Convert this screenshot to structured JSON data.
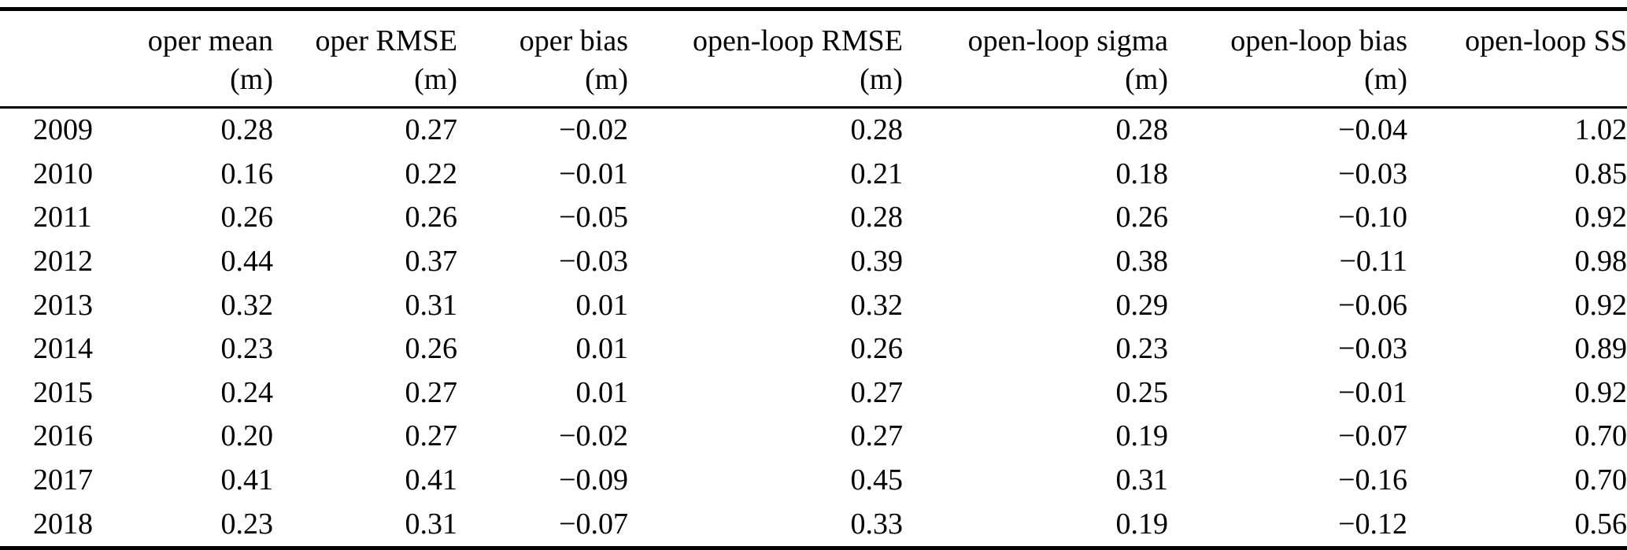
{
  "table": {
    "columns": [
      {
        "label": "",
        "unit": ""
      },
      {
        "label": "oper mean",
        "unit": "(m)"
      },
      {
        "label": "oper RMSE",
        "unit": "(m)"
      },
      {
        "label": "oper bias",
        "unit": "(m)"
      },
      {
        "label": "open-loop RMSE",
        "unit": "(m)"
      },
      {
        "label": "open-loop sigma",
        "unit": "(m)"
      },
      {
        "label": "open-loop bias",
        "unit": "(m)"
      },
      {
        "label": "open-loop SS",
        "unit": ""
      }
    ],
    "rows": [
      [
        "2009",
        "0.28",
        "0.27",
        "−0.02",
        "0.28",
        "0.28",
        "−0.04",
        "1.02"
      ],
      [
        "2010",
        "0.16",
        "0.22",
        "−0.01",
        "0.21",
        "0.18",
        "−0.03",
        "0.85"
      ],
      [
        "2011",
        "0.26",
        "0.26",
        "−0.05",
        "0.28",
        "0.26",
        "−0.10",
        "0.92"
      ],
      [
        "2012",
        "0.44",
        "0.37",
        "−0.03",
        "0.39",
        "0.38",
        "−0.11",
        "0.98"
      ],
      [
        "2013",
        "0.32",
        "0.31",
        "0.01",
        "0.32",
        "0.29",
        "−0.06",
        "0.92"
      ],
      [
        "2014",
        "0.23",
        "0.26",
        "0.01",
        "0.26",
        "0.23",
        "−0.03",
        "0.89"
      ],
      [
        "2015",
        "0.24",
        "0.27",
        "0.01",
        "0.27",
        "0.25",
        "−0.01",
        "0.92"
      ],
      [
        "2016",
        "0.20",
        "0.27",
        "−0.02",
        "0.27",
        "0.19",
        "−0.07",
        "0.70"
      ],
      [
        "2017",
        "0.41",
        "0.41",
        "−0.09",
        "0.45",
        "0.31",
        "−0.16",
        "0.70"
      ],
      [
        "2018",
        "0.23",
        "0.31",
        "−0.07",
        "0.33",
        "0.19",
        "−0.12",
        "0.56"
      ]
    ]
  },
  "chart_data": {
    "type": "table",
    "title": "",
    "categories": [
      "2009",
      "2010",
      "2011",
      "2012",
      "2013",
      "2014",
      "2015",
      "2016",
      "2017",
      "2018"
    ],
    "series": [
      {
        "name": "oper mean (m)",
        "values": [
          0.28,
          0.16,
          0.26,
          0.44,
          0.32,
          0.23,
          0.24,
          0.2,
          0.41,
          0.23
        ]
      },
      {
        "name": "oper RMSE (m)",
        "values": [
          0.27,
          0.22,
          0.26,
          0.37,
          0.31,
          0.26,
          0.27,
          0.27,
          0.41,
          0.31
        ]
      },
      {
        "name": "oper bias (m)",
        "values": [
          -0.02,
          -0.01,
          -0.05,
          -0.03,
          0.01,
          0.01,
          0.01,
          -0.02,
          -0.09,
          -0.07
        ]
      },
      {
        "name": "open-loop RMSE (m)",
        "values": [
          0.28,
          0.21,
          0.28,
          0.39,
          0.32,
          0.26,
          0.27,
          0.27,
          0.45,
          0.33
        ]
      },
      {
        "name": "open-loop sigma (m)",
        "values": [
          0.28,
          0.18,
          0.26,
          0.38,
          0.29,
          0.23,
          0.25,
          0.19,
          0.31,
          0.19
        ]
      },
      {
        "name": "open-loop bias (m)",
        "values": [
          -0.04,
          -0.03,
          -0.1,
          -0.11,
          -0.06,
          -0.03,
          -0.01,
          -0.07,
          -0.16,
          -0.12
        ]
      },
      {
        "name": "open-loop SS",
        "values": [
          1.02,
          0.85,
          0.92,
          0.98,
          0.92,
          0.89,
          0.92,
          0.7,
          0.7,
          0.56
        ]
      }
    ]
  }
}
